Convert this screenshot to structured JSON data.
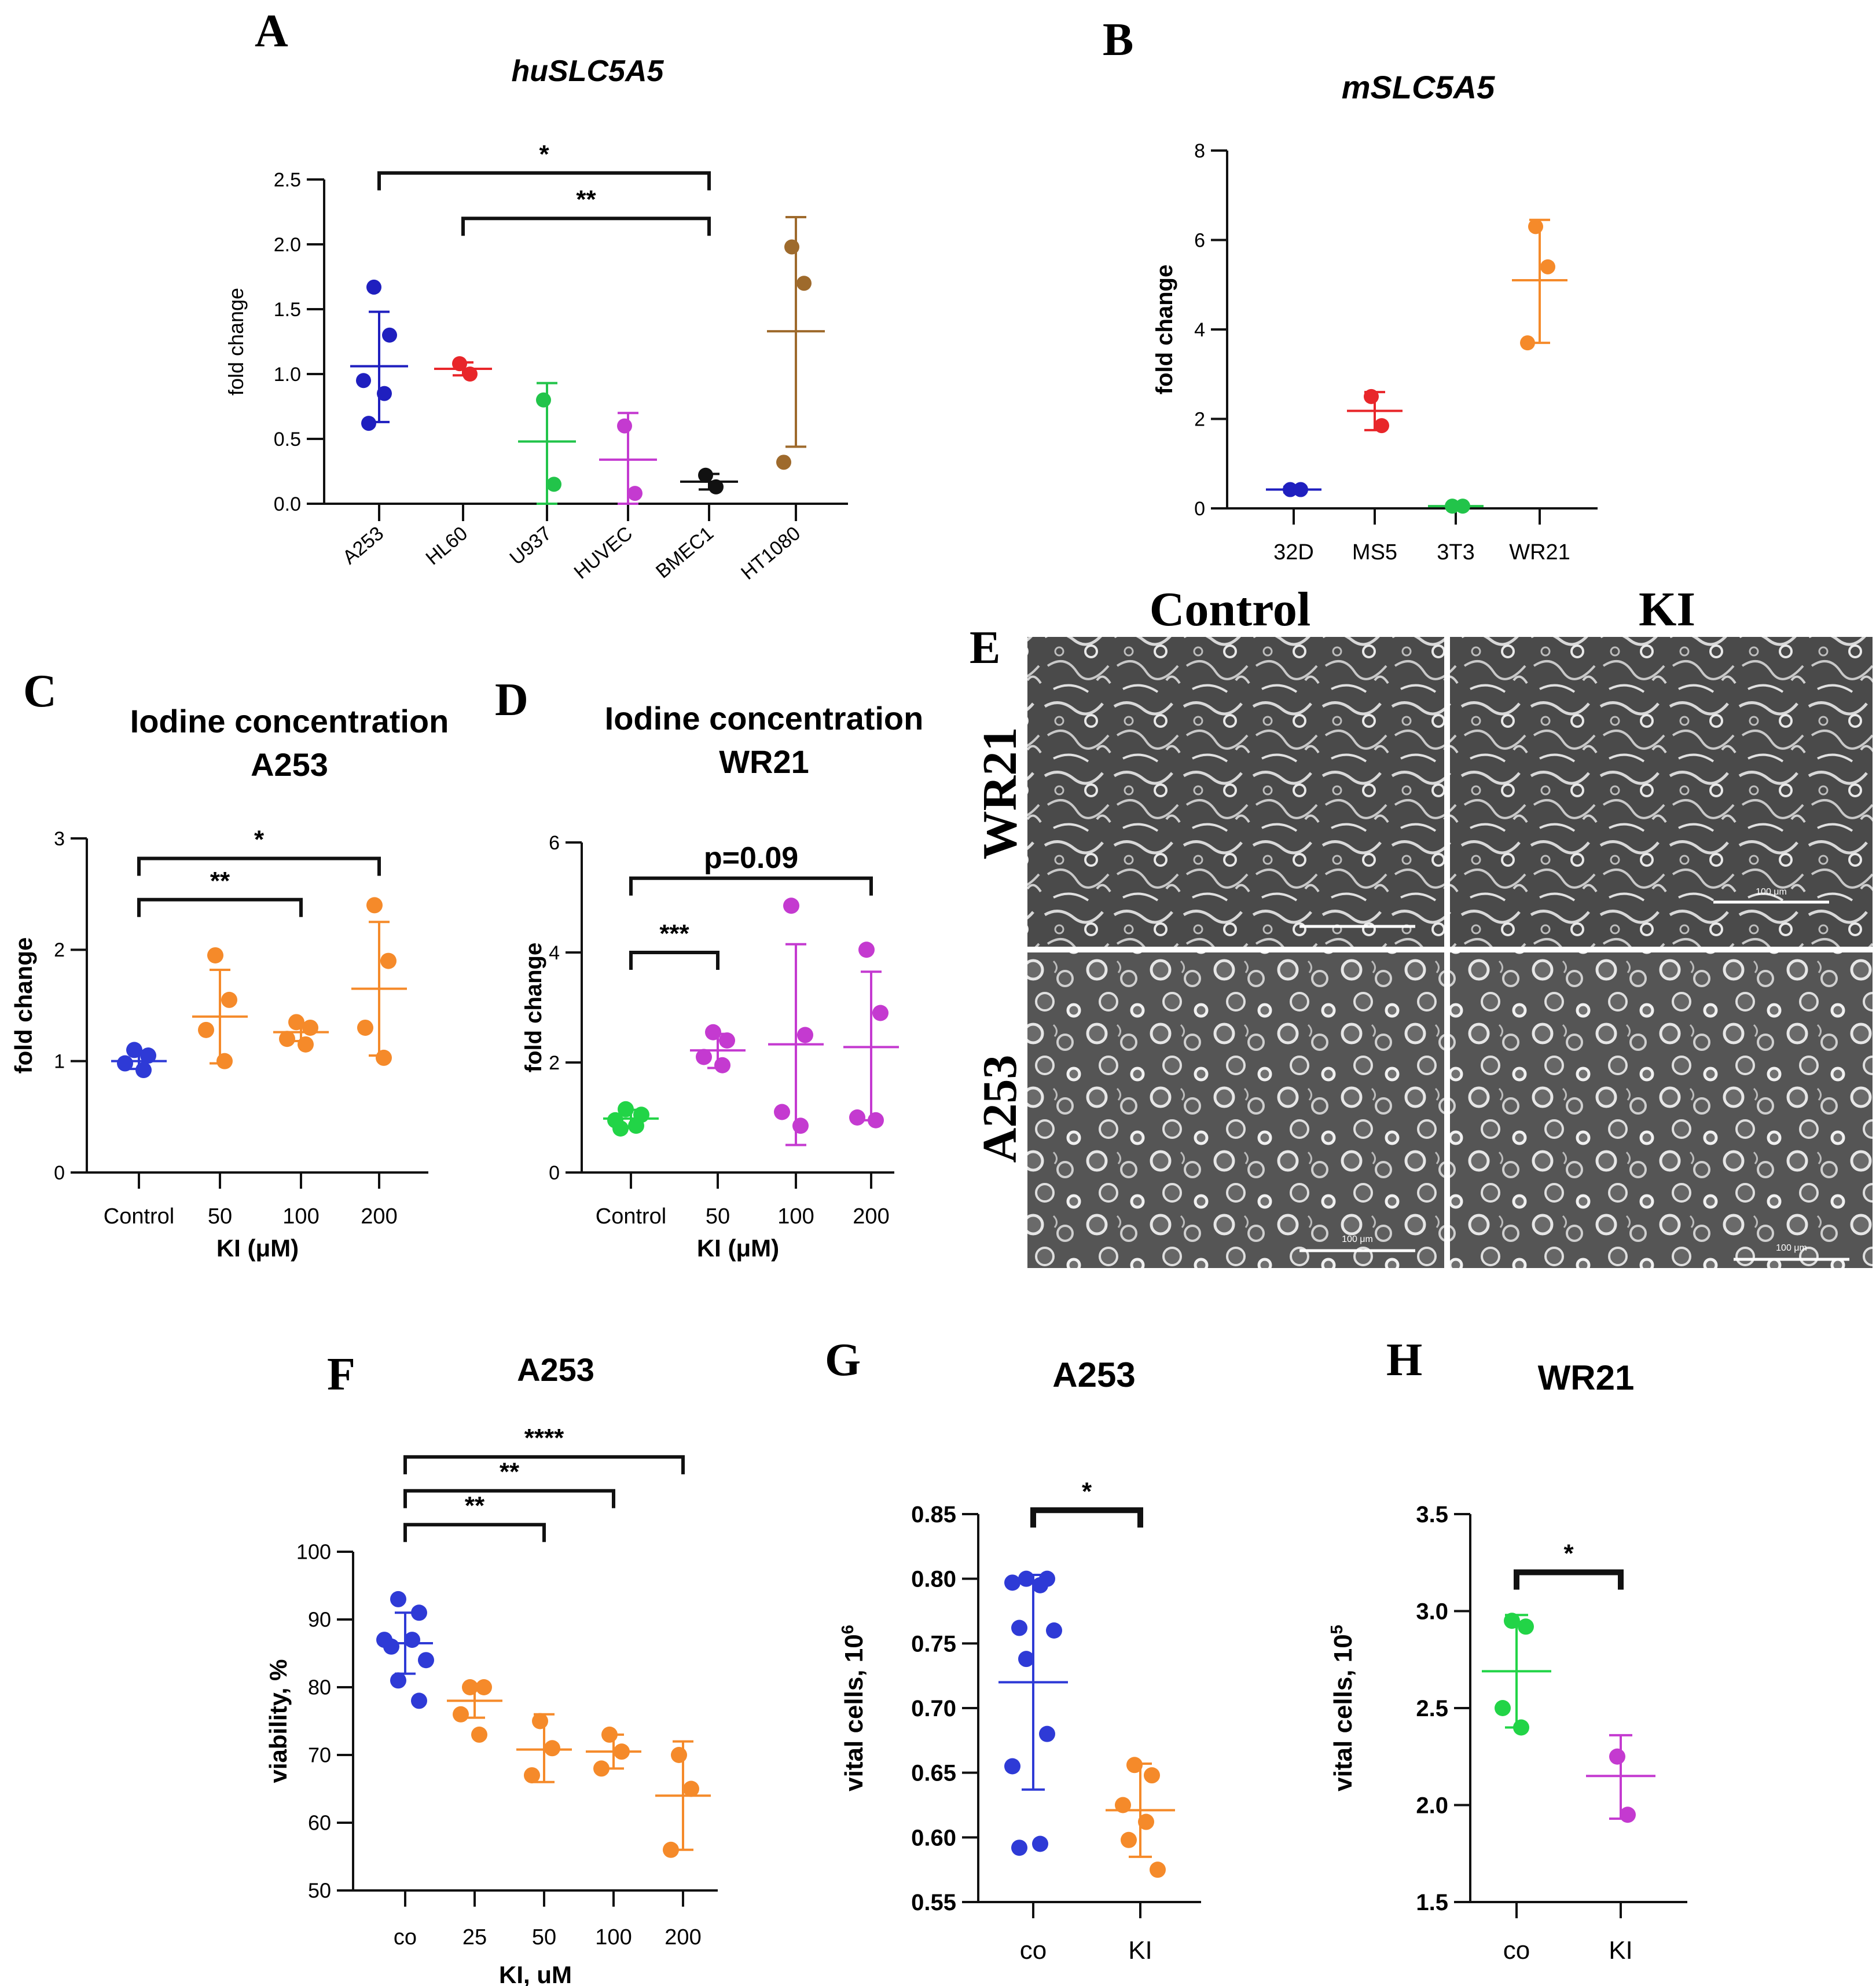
{
  "panel_labels": [
    "A",
    "B",
    "C",
    "D",
    "E",
    "F",
    "G",
    "H"
  ],
  "chart_data": [
    {
      "panel": "A",
      "type": "scatter",
      "title": "huSLC5A5",
      "ylabel": "fold change",
      "xlabel": "",
      "ylim": [
        0,
        2.5
      ],
      "yticks": [
        "0.0",
        "0.5",
        "1.0",
        "1.5",
        "2.0",
        "2.5"
      ],
      "grid": false,
      "categories": [
        "A253",
        "HL60",
        "U937",
        "HUVEC",
        "BMEC1",
        "HT1080"
      ],
      "series": [
        {
          "name": "A253",
          "color": "#1f1fbf",
          "points": [
            1.67,
            1.3,
            0.95,
            0.85,
            0.62
          ],
          "mean": 1.06,
          "sd": [
            0.63,
            1.48
          ]
        },
        {
          "name": "HL60",
          "color": "#e8262a",
          "points": [
            1.08,
            1.0
          ],
          "mean": 1.04,
          "sd": [
            0.99,
            1.09
          ]
        },
        {
          "name": "U937",
          "color": "#22c44a",
          "points": [
            0.8,
            0.15
          ],
          "mean": 0.48,
          "sd": [
            0.0,
            0.93
          ]
        },
        {
          "name": "HUVEC",
          "color": "#c43ad0",
          "points": [
            0.6,
            0.08
          ],
          "mean": 0.34,
          "sd": [
            0.0,
            0.7
          ]
        },
        {
          "name": "BMEC1",
          "color": "#111111",
          "points": [
            0.22,
            0.13
          ],
          "mean": 0.17,
          "sd": [
            0.11,
            0.23
          ]
        },
        {
          "name": "HT1080",
          "color": "#9e6a2c",
          "points": [
            1.98,
            1.7,
            0.32
          ],
          "mean": 1.33,
          "sd": [
            0.44,
            2.21
          ]
        }
      ],
      "annotations": [
        {
          "label": "*",
          "from": "A253",
          "to": "BMEC1",
          "level": 2.55
        },
        {
          "label": "**",
          "from": "HL60",
          "to": "BMEC1",
          "level": 2.2
        }
      ]
    },
    {
      "panel": "B",
      "type": "scatter",
      "title": "mSLC5A5",
      "ylabel": "fold change",
      "xlabel": "",
      "ylim": [
        0,
        8
      ],
      "yticks": [
        "0",
        "2",
        "4",
        "6",
        "8"
      ],
      "grid": false,
      "categories": [
        "32D",
        "MS5",
        "3T3",
        "WR21"
      ],
      "series": [
        {
          "name": "32D",
          "color": "#1f1fbf",
          "points": [
            0.42,
            0.42
          ],
          "mean": 0.42,
          "sd": [
            0.36,
            0.48
          ]
        },
        {
          "name": "MS5",
          "color": "#e8262a",
          "points": [
            2.5,
            1.85
          ],
          "mean": 2.18,
          "sd": [
            1.75,
            2.6
          ]
        },
        {
          "name": "3T3",
          "color": "#22c44a",
          "points": [
            0.05,
            0.05
          ],
          "mean": 0.05,
          "sd": [
            0.03,
            0.07
          ]
        },
        {
          "name": "WR21",
          "color": "#f58a2a",
          "points": [
            6.3,
            5.4,
            3.7
          ],
          "mean": 5.1,
          "sd": [
            3.7,
            6.45
          ]
        }
      ],
      "annotations": []
    },
    {
      "panel": "C",
      "type": "scatter",
      "title": "Iodine concentration",
      "subtitle": "A253",
      "ylabel": "fold change",
      "xlabel": "KI (μM)",
      "ylim": [
        0,
        3
      ],
      "yticks": [
        "0",
        "1",
        "2",
        "3"
      ],
      "grid": false,
      "categories": [
        "Control",
        "50",
        "100",
        "200"
      ],
      "series": [
        {
          "name": "Control",
          "color": "#2e3ad6",
          "points": [
            1.1,
            1.05,
            0.98,
            0.92
          ],
          "mean": 1.0,
          "sd": [
            0.93,
            1.06
          ]
        },
        {
          "name": "50",
          "color": "#f58a2a",
          "points": [
            1.95,
            1.55,
            1.28,
            1.0
          ],
          "mean": 1.4,
          "sd": [
            0.98,
            1.82
          ]
        },
        {
          "name": "100",
          "color": "#f58a2a",
          "points": [
            1.35,
            1.3,
            1.2,
            1.15
          ],
          "mean": 1.26,
          "sd": [
            1.18,
            1.34
          ]
        },
        {
          "name": "200",
          "color": "#f58a2a",
          "points": [
            2.4,
            1.9,
            1.3,
            1.03
          ],
          "mean": 1.65,
          "sd": [
            1.05,
            2.25
          ]
        }
      ],
      "annotations": [
        {
          "label": "*",
          "from": "Control",
          "to": "200",
          "level": 2.82
        },
        {
          "label": "**",
          "from": "Control",
          "to": "100",
          "level": 2.45
        }
      ]
    },
    {
      "panel": "D",
      "type": "scatter",
      "title": "Iodine concentration",
      "subtitle": "WR21",
      "ylabel": "fold change",
      "xlabel": "KI (μM)",
      "ylim": [
        0,
        6
      ],
      "yticks": [
        "0",
        "2",
        "4",
        "6"
      ],
      "grid": false,
      "categories": [
        "Control",
        "50",
        "100",
        "200"
      ],
      "series": [
        {
          "name": "Control",
          "color": "#22d447",
          "points": [
            1.15,
            1.05,
            0.95,
            0.85,
            0.8
          ],
          "mean": 0.98,
          "sd": [
            0.82,
            1.14
          ]
        },
        {
          "name": "50",
          "color": "#c43ad0",
          "points": [
            2.55,
            2.4,
            2.1,
            1.95
          ],
          "mean": 2.22,
          "sd": [
            1.9,
            2.52
          ]
        },
        {
          "name": "100",
          "color": "#c43ad0",
          "points": [
            4.85,
            2.5,
            1.1,
            0.85
          ],
          "mean": 2.33,
          "sd": [
            0.5,
            4.15
          ]
        },
        {
          "name": "200",
          "color": "#c43ad0",
          "points": [
            4.05,
            2.9,
            1.0,
            0.95
          ],
          "mean": 2.28,
          "sd": [
            0.95,
            3.65
          ]
        }
      ],
      "annotations": [
        {
          "label": "p=0.09",
          "from": "Control",
          "to": "200",
          "level": 5.35
        },
        {
          "label": "***",
          "from": "Control",
          "to": "50",
          "level": 4.0
        }
      ]
    },
    {
      "panel": "F",
      "type": "scatter",
      "title": "A253",
      "ylabel": "viability, %",
      "xlabel": "KI, uM",
      "ylim": [
        50,
        100
      ],
      "yticks": [
        "50",
        "60",
        "70",
        "80",
        "90",
        "100"
      ],
      "grid": false,
      "categories": [
        "co",
        "25",
        "50",
        "100",
        "200"
      ],
      "series": [
        {
          "name": "co",
          "color": "#2e3ad6",
          "points": [
            93,
            91,
            87,
            87,
            86,
            84,
            81,
            78
          ],
          "mean": 86.5,
          "sd": [
            82,
            91
          ]
        },
        {
          "name": "25",
          "color": "#f58a2a",
          "points": [
            80,
            80,
            76,
            73
          ],
          "mean": 78,
          "sd": [
            75.5,
            80.5
          ]
        },
        {
          "name": "50",
          "color": "#f58a2a",
          "points": [
            75,
            71,
            67
          ],
          "mean": 70.8,
          "sd": [
            66,
            76
          ]
        },
        {
          "name": "100",
          "color": "#f58a2a",
          "points": [
            73,
            70.5,
            68
          ],
          "mean": 70.5,
          "sd": [
            68,
            73
          ]
        },
        {
          "name": "200",
          "color": "#f58a2a",
          "points": [
            70,
            65,
            56
          ],
          "mean": 64,
          "sd": [
            56,
            72
          ]
        }
      ],
      "annotations": [
        {
          "label": "****",
          "from": "co",
          "to": "200",
          "level": 114
        },
        {
          "label": "**",
          "from": "co",
          "to": "100",
          "level": 109
        },
        {
          "label": "**",
          "from": "co",
          "to": "50",
          "level": 104
        }
      ]
    },
    {
      "panel": "G",
      "type": "scatter",
      "title": "A253",
      "ylabel": "vital cells, 10",
      "ylabel_exp": "6",
      "xlabel": "",
      "ylim": [
        0.55,
        0.85
      ],
      "yticks": [
        "0.55",
        "0.60",
        "0.65",
        "0.70",
        "0.75",
        "0.80",
        "0.85"
      ],
      "grid": false,
      "categories": [
        "co",
        "KI"
      ],
      "series": [
        {
          "name": "co",
          "color": "#2e3ad6",
          "points": [
            0.8,
            0.8,
            0.797,
            0.795,
            0.762,
            0.76,
            0.738,
            0.68,
            0.655,
            0.595,
            0.592
          ],
          "mean": 0.72,
          "sd": [
            0.637,
            0.803
          ]
        },
        {
          "name": "KI",
          "color": "#f58a2a",
          "points": [
            0.656,
            0.648,
            0.625,
            0.612,
            0.598,
            0.575
          ],
          "mean": 0.621,
          "sd": [
            0.585,
            0.657
          ]
        }
      ],
      "annotations": [
        {
          "label": "*",
          "from": "co",
          "to": "KI",
          "level": 0.853
        }
      ]
    },
    {
      "panel": "H",
      "type": "scatter",
      "title": "WR21",
      "ylabel": "vital cells, 10",
      "ylabel_exp": "5",
      "xlabel": "",
      "ylim": [
        1.5,
        3.5
      ],
      "yticks": [
        "1.5",
        "2.0",
        "2.5",
        "3.0",
        "3.5"
      ],
      "grid": false,
      "categories": [
        "co",
        "KI"
      ],
      "series": [
        {
          "name": "co",
          "color": "#22d447",
          "points": [
            2.95,
            2.92,
            2.5,
            2.4
          ],
          "mean": 2.69,
          "sd": [
            2.4,
            2.98
          ]
        },
        {
          "name": "KI",
          "color": "#c43ad0",
          "points": [
            2.25,
            1.95
          ],
          "mean": 2.15,
          "sd": [
            1.93,
            2.36
          ]
        }
      ],
      "annotations": [
        {
          "label": "*",
          "from": "co",
          "to": "KI",
          "level": 3.2
        }
      ]
    }
  ],
  "micrographs": {
    "column_titles": [
      "Control",
      "KI"
    ],
    "row_titles": [
      "WR21",
      "A253"
    ],
    "scale_bar_label": "100 μm"
  }
}
